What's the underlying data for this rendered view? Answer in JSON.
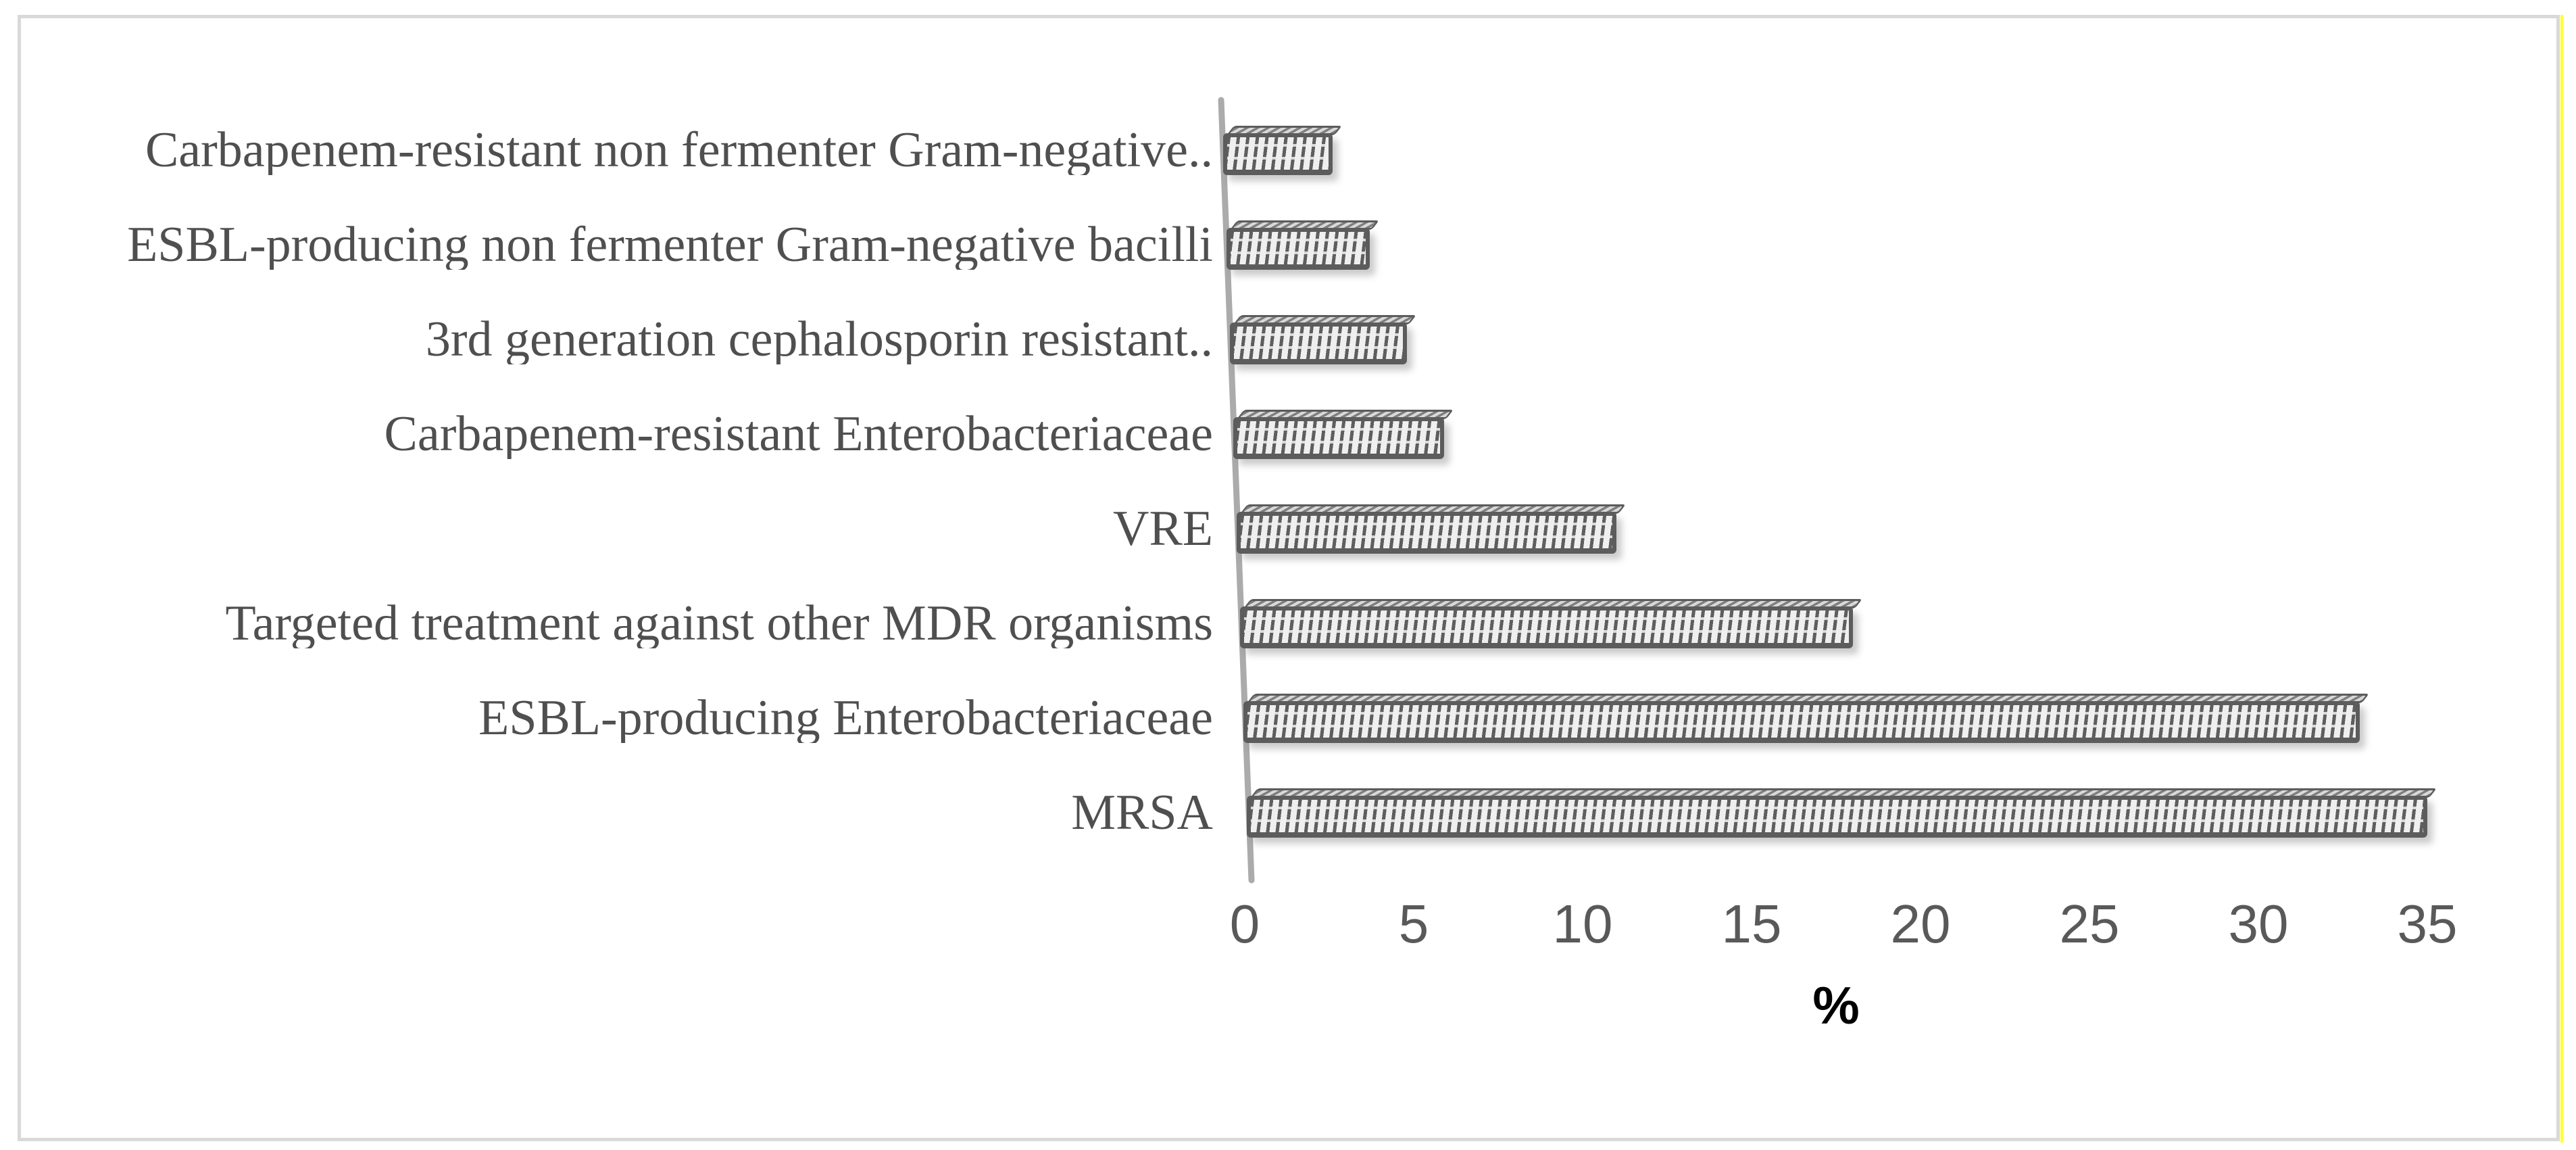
{
  "figure": {
    "xlabel": "%"
  },
  "chart_data": {
    "type": "bar",
    "orientation": "horizontal",
    "title": "",
    "xlabel": "%",
    "ylabel": "",
    "categories": [
      "Carbapenem-resistant non fermenter Gram-negative..",
      "ESBL-producing non fermenter Gram-negative bacilli",
      "3rd generation cephalosporin resistant..",
      "Carbapenem-resistant Enterobacteriaceae",
      "VRE",
      "Targeted treatment against other MDR organisms",
      "ESBL-producing Enterobacteriaceae",
      "MRSA"
    ],
    "values": [
      2.6,
      3.7,
      4.8,
      5.9,
      11,
      18,
      33,
      35
    ],
    "xticks": [
      0,
      5,
      10,
      15,
      20,
      25,
      30,
      35
    ],
    "xlim": [
      0,
      35
    ],
    "grid": false,
    "legend": false,
    "bar_style": "diagonal-hatch-3d",
    "colors": {
      "bar_border": "#5c5c5c",
      "bar_fill": "#efefef",
      "bar_stripe": "#5e5e5e",
      "axis_line": "#ababab",
      "frame_border": "#d9d9d9",
      "edge_highlight": "#ffff33",
      "tick_text": "#595959",
      "label_text": "#4f4f4f",
      "xlabel_text": "#000000"
    }
  }
}
